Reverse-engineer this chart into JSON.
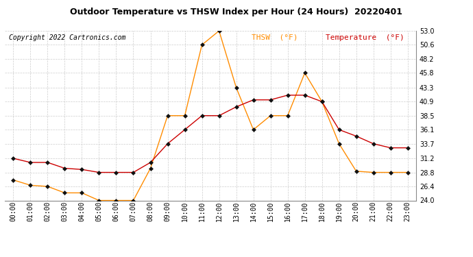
{
  "title": "Outdoor Temperature vs THSW Index per Hour (24 Hours)  20220401",
  "copyright": "Copyright 2022 Cartronics.com",
  "legend_thsw": "THSW  (°F)",
  "legend_temp": "Temperature  (°F)",
  "hours": [
    "00:00",
    "01:00",
    "02:00",
    "03:00",
    "04:00",
    "05:00",
    "06:00",
    "07:00",
    "08:00",
    "09:00",
    "10:00",
    "11:00",
    "12:00",
    "13:00",
    "14:00",
    "15:00",
    "16:00",
    "17:00",
    "18:00",
    "19:00",
    "20:00",
    "21:00",
    "22:00",
    "23:00"
  ],
  "temperature": [
    31.2,
    30.5,
    30.5,
    29.5,
    29.3,
    28.8,
    28.8,
    28.8,
    30.5,
    33.7,
    36.1,
    38.5,
    38.5,
    40.0,
    41.2,
    41.2,
    42.0,
    42.0,
    40.9,
    36.1,
    35.0,
    33.7,
    33.0,
    33.0
  ],
  "thsw": [
    27.5,
    26.6,
    26.4,
    25.3,
    25.3,
    24.0,
    24.0,
    24.0,
    29.5,
    38.5,
    38.5,
    50.6,
    53.0,
    43.3,
    36.1,
    38.5,
    38.5,
    45.8,
    40.9,
    33.7,
    29.0,
    28.8,
    28.8,
    28.8
  ],
  "ylim": [
    24.0,
    53.0
  ],
  "yticks": [
    24.0,
    26.4,
    28.8,
    31.2,
    33.7,
    36.1,
    38.5,
    40.9,
    43.3,
    45.8,
    48.2,
    50.6,
    53.0
  ],
  "temp_color": "#cc0000",
  "thsw_color": "#ff8c00",
  "marker_color": "#111111",
  "title_color": "#000000",
  "copyright_color": "#000000",
  "legend_thsw_color": "#ff8c00",
  "legend_temp_color": "#cc0000",
  "grid_color": "#cccccc",
  "bg_color": "#ffffff",
  "title_fontsize": 9,
  "copyright_fontsize": 7,
  "legend_fontsize": 8,
  "tick_fontsize": 7,
  "marker_size": 3,
  "linewidth": 1.0
}
